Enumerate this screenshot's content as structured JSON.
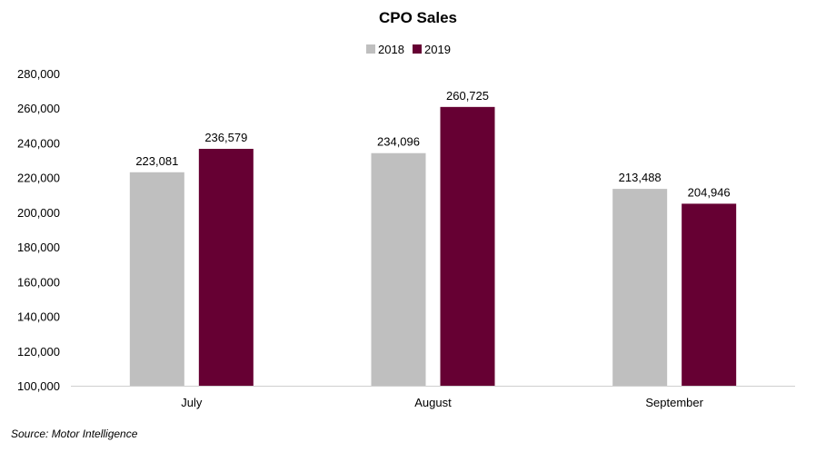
{
  "chart_data": {
    "type": "bar",
    "title": "CPO Sales",
    "categories": [
      "July",
      "August",
      "September"
    ],
    "series": [
      {
        "name": "2018",
        "color": "#bfbfbf",
        "values": [
          223081,
          234096,
          213488
        ],
        "labels": [
          "223,081",
          "234,096",
          "213,488"
        ]
      },
      {
        "name": "2019",
        "color": "#660033",
        "values": [
          236579,
          260725,
          204946
        ],
        "labels": [
          "236,579",
          "260,725",
          "204,946"
        ]
      }
    ],
    "ylim": [
      100000,
      280000
    ],
    "yticks": [
      100000,
      120000,
      140000,
      160000,
      180000,
      200000,
      220000,
      240000,
      260000,
      280000
    ],
    "ytick_labels": [
      "100,000",
      "120,000",
      "140,000",
      "160,000",
      "180,000",
      "200,000",
      "220,000",
      "240,000",
      "260,000",
      "280,000"
    ],
    "grid": false,
    "legend_position": "top-center",
    "xlabel": "",
    "ylabel": ""
  },
  "source_note": "Source: Motor Intelligence"
}
